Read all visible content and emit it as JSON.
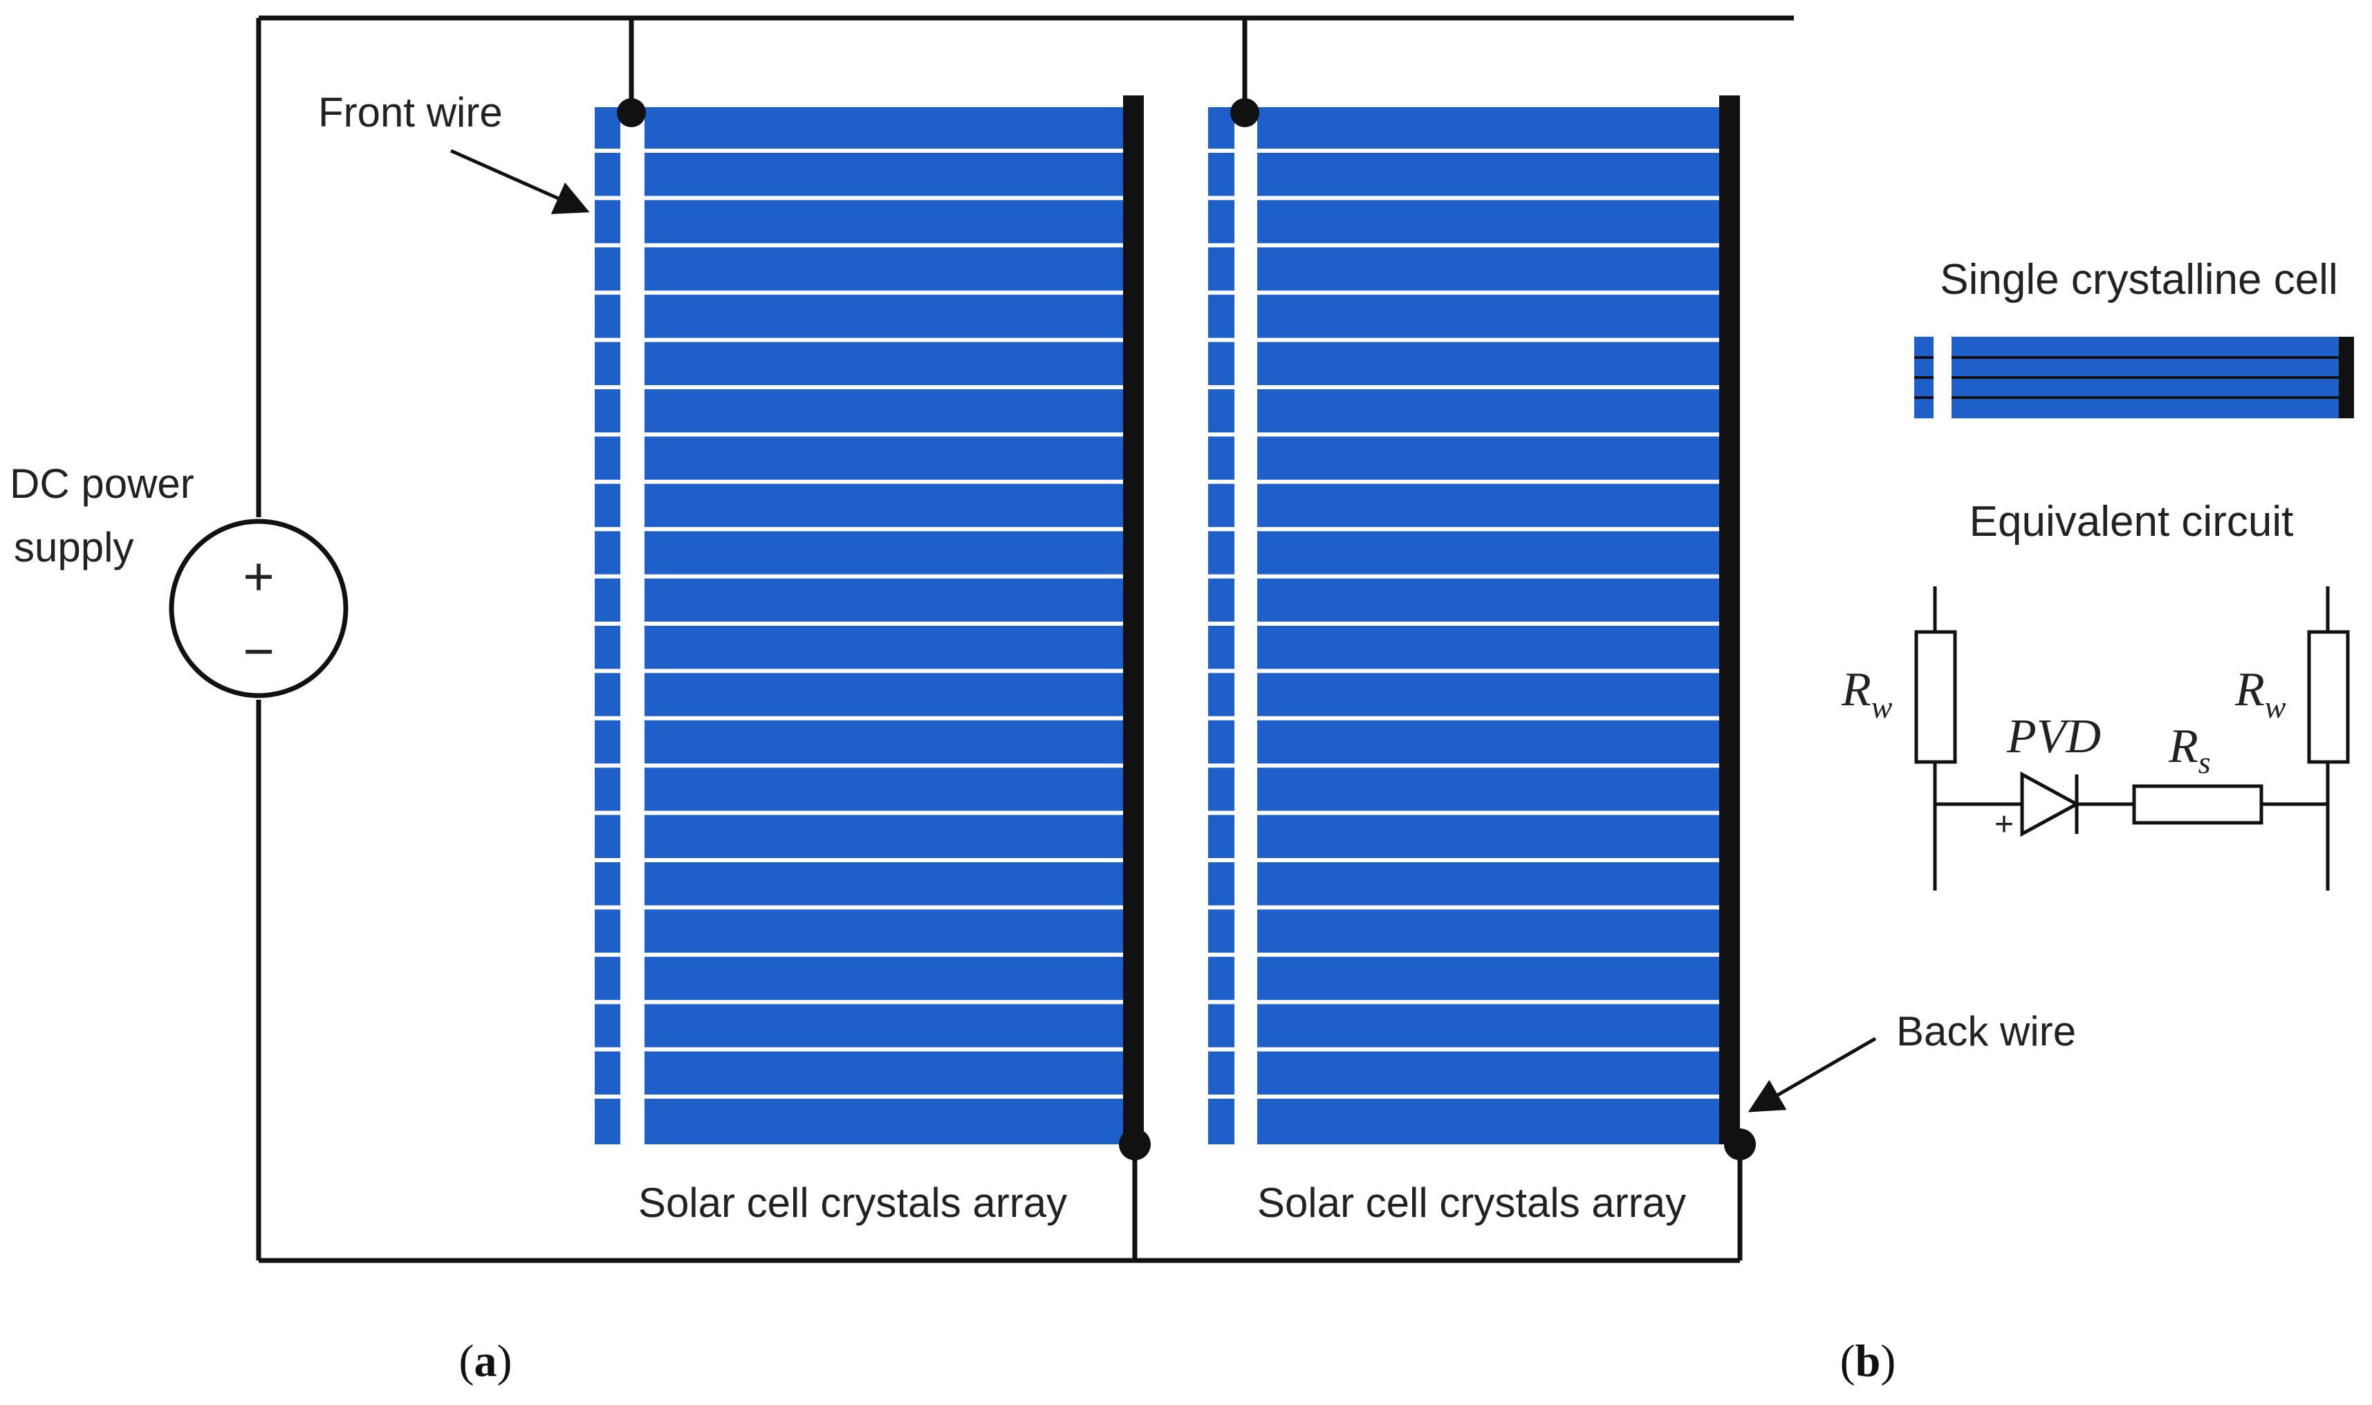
{
  "colors": {
    "cell_blue": "#1f5fc9",
    "finger_white": "#ffffff",
    "wire": "#111111"
  },
  "labels": {
    "front_wire": "Front wire",
    "back_wire": "Back wire",
    "dc_power_line1": "DC power",
    "dc_power_line2": "supply",
    "plus": "+",
    "minus": "−",
    "array_left": "Solar cell crystals array",
    "array_right": "Solar cell crystals array",
    "single_cell": "Single crystalline cell",
    "equivalent_circuit": "Equivalent circuit",
    "rw_main": "R",
    "rw_sub": "w",
    "rs_main": "R",
    "rs_sub": "s",
    "pvd": "PVD",
    "diode_plus": "+",
    "panel_a_open": "(",
    "panel_a_letter": "a",
    "panel_a_close": ")",
    "panel_b_open": "(",
    "panel_b_letter": "b",
    "panel_b_close": ")"
  },
  "icons": {
    "source": "dc-source-icon",
    "diode": "diode-icon",
    "resistor": "resistor-icon"
  }
}
